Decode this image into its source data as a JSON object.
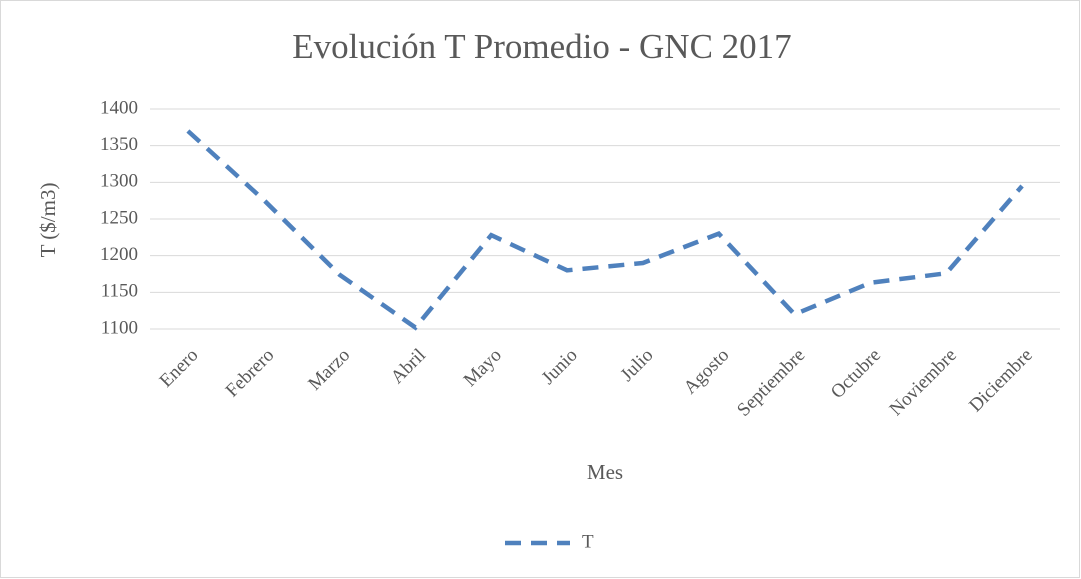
{
  "chart_data": {
    "type": "line",
    "title": "Evolución T Promedio - GNC 2017",
    "x_label": "Mes",
    "y_label": "T ($/m3)",
    "categories": [
      "Enero",
      "Febrero",
      "Marzo",
      "Abril",
      "Mayo",
      "Junio",
      "Julio",
      "Agosto",
      "Septiembre",
      "Octubre",
      "Noviembre",
      "Diciembre"
    ],
    "series": [
      {
        "name": "T",
        "color": "#4f81bd",
        "values": [
          1370,
          1276,
          1174,
          1102,
          1228,
          1180,
          1190,
          1230,
          1120,
          1163,
          1176,
          1295
        ]
      }
    ],
    "ylim": [
      1100,
      1400
    ],
    "yticks": [
      1100,
      1150,
      1200,
      1250,
      1300,
      1350,
      1400
    ],
    "grid": true,
    "legend": "bottom"
  }
}
